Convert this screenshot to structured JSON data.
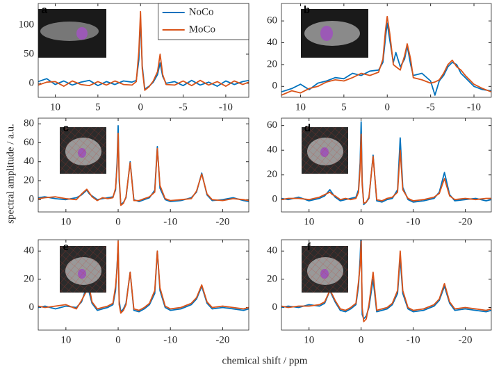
{
  "ylabel": "spectral amplitude / a.u.",
  "xlabel": "chemical shift / ppm",
  "chart_data": [
    {
      "type": "line",
      "label": "a",
      "legend": "top",
      "x": [
        12,
        11,
        10,
        9,
        8,
        7,
        6,
        5,
        4,
        3,
        2,
        1,
        0.5,
        0.2,
        0,
        -0.2,
        -0.5,
        -1,
        -1.5,
        -2,
        -2.3,
        -2.6,
        -3,
        -4,
        -5,
        -6,
        -7,
        -8,
        -9,
        -10,
        -11,
        -12,
        -12.7
      ],
      "series": [
        {
          "name": "NoCo",
          "color": "#0072bd",
          "values": [
            3,
            8,
            -2,
            4,
            -3,
            2,
            5,
            -4,
            3,
            -2,
            4,
            2,
            5,
            40,
            110,
            30,
            -10,
            -5,
            2,
            15,
            35,
            12,
            0,
            3,
            -4,
            5,
            -3,
            2,
            -5,
            4,
            -2,
            3,
            5
          ]
        },
        {
          "name": "MoCo",
          "color": "#d95319",
          "values": [
            -3,
            2,
            3,
            -5,
            4,
            -2,
            -4,
            3,
            -3,
            4,
            -2,
            -3,
            3,
            55,
            123,
            25,
            -12,
            -6,
            4,
            20,
            50,
            15,
            -2,
            -3,
            4,
            -4,
            5,
            -3,
            3,
            -5,
            4,
            -2,
            2
          ]
        }
      ],
      "xlim": [
        12,
        -12.7
      ],
      "xticks": [
        10,
        5,
        0,
        -5,
        -10
      ],
      "ylim": [
        -24,
        137
      ],
      "yticks": [
        0,
        50,
        100
      ]
    },
    {
      "type": "line",
      "label": "b",
      "x": [
        12.2,
        11,
        10,
        9,
        8,
        7,
        6,
        5,
        4,
        3,
        2,
        1,
        0.5,
        0.2,
        0,
        -0.3,
        -0.7,
        -1,
        -1.5,
        -2,
        -2.3,
        -2.7,
        -3,
        -4,
        -5,
        -5.5,
        -6,
        -6.5,
        -7,
        -7.5,
        -8,
        -8.5,
        -9,
        -10,
        -11,
        -12
      ],
      "series": [
        {
          "name": "NoCo",
          "color": "#0072bd",
          "values": [
            -5,
            -2,
            2,
            -3,
            3,
            5,
            8,
            7,
            12,
            10,
            14,
            15,
            22,
            45,
            58,
            42,
            22,
            31,
            18,
            25,
            37,
            20,
            10,
            12,
            5,
            -8,
            5,
            10,
            18,
            22,
            20,
            12,
            8,
            0,
            -3,
            -4
          ]
        },
        {
          "name": "MoCo",
          "color": "#d95319",
          "values": [
            -8,
            -4,
            -6,
            -2,
            0,
            4,
            6,
            5,
            8,
            12,
            10,
            13,
            25,
            52,
            64,
            48,
            20,
            18,
            15,
            28,
            39,
            25,
            8,
            6,
            3,
            4,
            6,
            12,
            20,
            24,
            18,
            15,
            10,
            2,
            -2,
            -5
          ]
        }
      ],
      "xlim": [
        12.2,
        -12
      ],
      "xticks": [
        10,
        5,
        0,
        -5,
        -10
      ],
      "ylim": [
        -10,
        76
      ],
      "yticks": [
        0,
        20,
        40,
        60
      ]
    },
    {
      "type": "line",
      "label": "c",
      "x": [
        15.3,
        14,
        12,
        10,
        8,
        7,
        6,
        5.5,
        5,
        4,
        3,
        2,
        1,
        0.5,
        0.2,
        0,
        -0.2,
        -0.5,
        -1,
        -1.5,
        -2.3,
        -3,
        -4,
        -5,
        -6,
        -7,
        -7.5,
        -8,
        -9,
        -10,
        -12,
        -14,
        -15,
        -16,
        -17,
        -18,
        -20,
        -22,
        -24,
        -25
      ],
      "series": [
        {
          "name": "NoCo",
          "color": "#0072bd",
          "values": [
            2,
            3,
            1,
            0,
            2,
            5,
            10,
            6,
            4,
            0,
            1,
            2,
            3,
            10,
            40,
            78,
            20,
            -5,
            -3,
            2,
            40,
            0,
            -2,
            0,
            2,
            10,
            56,
            12,
            0,
            -2,
            -1,
            2,
            8,
            28,
            5,
            -1,
            0,
            2,
            -1,
            -2
          ]
        },
        {
          "name": "MoCo",
          "color": "#d95319",
          "values": [
            1,
            2,
            3,
            1,
            0,
            6,
            11,
            7,
            3,
            -1,
            2,
            1,
            2,
            12,
            35,
            70,
            25,
            -6,
            -4,
            3,
            39,
            -1,
            -1,
            1,
            3,
            8,
            54,
            15,
            1,
            -1,
            0,
            1,
            9,
            27,
            6,
            0,
            -1,
            1,
            0,
            -1
          ]
        }
      ],
      "xlim": [
        15.3,
        -25
      ],
      "xticks": [
        10,
        0,
        -10,
        -20
      ],
      "ylim": [
        -13,
        86
      ],
      "yticks": [
        0,
        20,
        40,
        60,
        80
      ]
    },
    {
      "type": "line",
      "label": "d",
      "x": [
        15.3,
        14,
        12,
        10,
        8,
        7,
        6,
        5.5,
        5,
        4,
        3,
        2,
        1,
        0.5,
        0.2,
        0,
        -0.2,
        -0.5,
        -1,
        -1.5,
        -2.3,
        -3,
        -4,
        -5,
        -6,
        -7,
        -7.5,
        -8,
        -9,
        -10,
        -12,
        -14,
        -15,
        -16,
        -17,
        -18,
        -20,
        -22,
        -24,
        -25
      ],
      "series": [
        {
          "name": "NoCo",
          "color": "#0072bd",
          "values": [
            1,
            0,
            2,
            -1,
            1,
            3,
            8,
            5,
            2,
            -1,
            0,
            1,
            2,
            8,
            30,
            63,
            15,
            -4,
            -2,
            1,
            36,
            -1,
            -2,
            0,
            1,
            8,
            50,
            10,
            0,
            -2,
            -1,
            1,
            6,
            22,
            4,
            -1,
            0,
            1,
            -1,
            0
          ]
        },
        {
          "name": "MoCo",
          "color": "#d95319",
          "values": [
            0,
            1,
            1,
            0,
            2,
            4,
            6,
            4,
            3,
            0,
            1,
            0,
            1,
            6,
            25,
            53,
            12,
            -3,
            -2,
            2,
            35,
            0,
            -1,
            1,
            2,
            6,
            40,
            8,
            1,
            -1,
            0,
            2,
            5,
            17,
            3,
            0,
            1,
            0,
            1,
            1
          ]
        }
      ],
      "xlim": [
        15.3,
        -25
      ],
      "xticks": [
        10,
        0,
        -10,
        -20
      ],
      "ylim": [
        -10,
        66
      ],
      "yticks": [
        0,
        20,
        40,
        60
      ]
    },
    {
      "type": "line",
      "label": "e",
      "x": [
        15.3,
        14,
        12,
        10,
        8,
        7,
        6,
        5.5,
        5,
        4,
        3,
        2,
        1,
        0.5,
        0.2,
        0,
        -0.2,
        -0.5,
        -1,
        -1.5,
        -2.3,
        -3,
        -4,
        -5,
        -6,
        -7,
        -7.5,
        -8,
        -9,
        -10,
        -12,
        -14,
        -15,
        -16,
        -17,
        -18,
        -20,
        -22,
        -24,
        -25
      ],
      "series": [
        {
          "name": "NoCo",
          "color": "#0072bd",
          "values": [
            0,
            1,
            -1,
            1,
            0,
            4,
            15,
            10,
            3,
            -2,
            -1,
            0,
            2,
            12,
            30,
            45,
            5,
            -3,
            -1,
            3,
            25,
            -2,
            -3,
            -1,
            2,
            10,
            40,
            12,
            0,
            -2,
            -1,
            2,
            6,
            15,
            3,
            -1,
            0,
            -1,
            -2,
            -1
          ]
        },
        {
          "name": "MoCo",
          "color": "#d95319",
          "values": [
            1,
            0,
            1,
            2,
            -1,
            5,
            12,
            14,
            4,
            -1,
            0,
            1,
            3,
            15,
            28,
            47,
            2,
            -4,
            -2,
            2,
            25,
            -1,
            -2,
            0,
            3,
            12,
            40,
            14,
            1,
            -1,
            0,
            3,
            7,
            16,
            4,
            0,
            1,
            0,
            -1,
            0
          ]
        }
      ],
      "xlim": [
        15.3,
        -25
      ],
      "xticks": [
        10,
        0,
        -10,
        -20
      ],
      "ylim": [
        -16,
        48
      ],
      "yticks": [
        0,
        20,
        40
      ]
    },
    {
      "type": "line",
      "label": "f",
      "x": [
        15.3,
        14,
        12,
        10,
        8,
        7,
        6,
        5.5,
        5,
        4,
        3,
        2,
        1,
        0.5,
        0.2,
        0,
        -0.2,
        -0.5,
        -1,
        -1.5,
        -2.3,
        -3,
        -4,
        -5,
        -6,
        -7,
        -7.5,
        -8,
        -9,
        -10,
        -12,
        -14,
        -15,
        -16,
        -17,
        -18,
        -20,
        -22,
        -24,
        -25
      ],
      "series": [
        {
          "name": "NoCo",
          "color": "#0072bd",
          "values": [
            0,
            1,
            0,
            2,
            1,
            3,
            12,
            8,
            4,
            -2,
            -3,
            -1,
            2,
            15,
            35,
            54,
            -5,
            -8,
            -6,
            0,
            20,
            -3,
            -2,
            -1,
            2,
            10,
            35,
            10,
            -1,
            -3,
            -2,
            1,
            5,
            15,
            3,
            -2,
            -1,
            -2,
            -3,
            -2
          ]
        },
        {
          "name": "MoCo",
          "color": "#d95319",
          "values": [
            1,
            0,
            1,
            1,
            2,
            4,
            12,
            9,
            5,
            -1,
            -2,
            0,
            3,
            18,
            30,
            47,
            0,
            -10,
            -8,
            2,
            25,
            -2,
            -1,
            0,
            3,
            12,
            40,
            12,
            0,
            -2,
            -1,
            2,
            6,
            17,
            4,
            -1,
            0,
            -1,
            -2,
            -1
          ]
        }
      ],
      "xlim": [
        15.3,
        -25
      ],
      "xticks": [
        10,
        0,
        -10,
        -20
      ],
      "ylim": [
        -16,
        48
      ],
      "yticks": [
        0,
        20,
        40
      ]
    }
  ]
}
